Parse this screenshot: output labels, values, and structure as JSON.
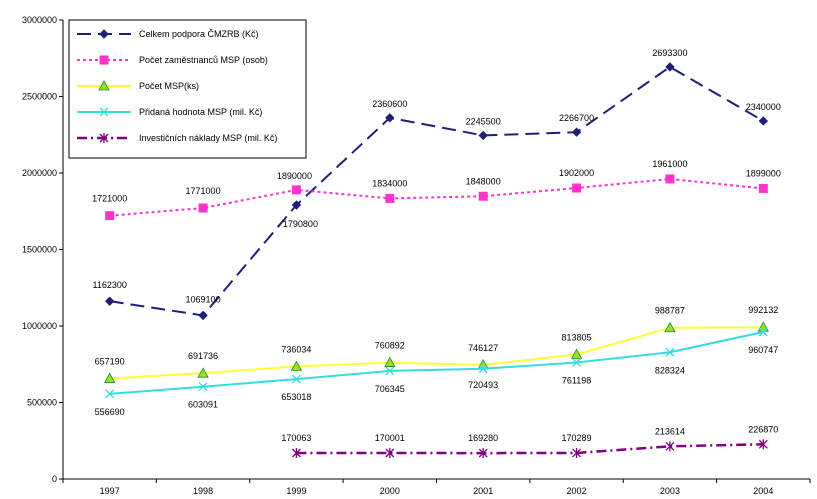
{
  "chart_data": {
    "type": "line",
    "categories": [
      "1997",
      "1998",
      "1999",
      "2000",
      "2001",
      "2002",
      "2003",
      "2004"
    ],
    "ylim": [
      0,
      3000000
    ],
    "yticks": [
      "0",
      "500000",
      "1000000",
      "1500000",
      "2000000",
      "2500000",
      "3000000"
    ],
    "grid": false,
    "legend_position": "top-left",
    "series": [
      {
        "name": "Celkem podpora ČMZRB (Kč)",
        "color": "#1f1f7a",
        "marker": "diamond",
        "values": [
          1162300,
          1069100,
          1790800,
          2360600,
          2245500,
          2266700,
          2693300,
          2340000
        ],
        "labels": [
          "1162300",
          "1069100",
          "1790800",
          "2360600",
          "2245500",
          "2266700",
          "2693300",
          "2340000"
        ]
      },
      {
        "name": "Počet zaměstnanců MSP (osob)",
        "color": "#ff33cc",
        "marker": "square",
        "values": [
          1721000,
          1771000,
          1890000,
          1834000,
          1848000,
          1902000,
          1961000,
          1899000
        ],
        "labels": [
          "1721000",
          "1771000",
          "1890000",
          "1834000",
          "1848000",
          "1902000",
          "1961000",
          "1899000"
        ]
      },
      {
        "name": "Počet MSP(ks)",
        "color": "#ffff33",
        "marker": "triangle",
        "values": [
          657190,
          691736,
          736034,
          760892,
          746127,
          813805,
          988787,
          992132
        ],
        "labels": [
          "657190",
          "691736",
          "736034",
          "760892",
          "746127",
          "813805",
          "988787",
          "992132"
        ]
      },
      {
        "name": "Přidaná hodnota MSP (mil. Kč)",
        "color": "#33dddd",
        "marker": "x",
        "values": [
          556690,
          603091,
          653018,
          706345,
          720493,
          761198,
          828324,
          960747
        ],
        "labels": [
          "556690",
          "603091",
          "653018",
          "706345",
          "720493",
          "761198",
          "828324",
          "960747"
        ]
      },
      {
        "name": "Investičních náklady MSP (mil. Kč)",
        "color": "#800080",
        "marker": "star",
        "values": [
          null,
          null,
          170063,
          170001,
          169280,
          170289,
          213614,
          226870
        ],
        "labels": [
          null,
          null,
          "170063",
          "170001",
          "169280",
          "170289",
          "213614",
          "226870"
        ]
      }
    ]
  }
}
